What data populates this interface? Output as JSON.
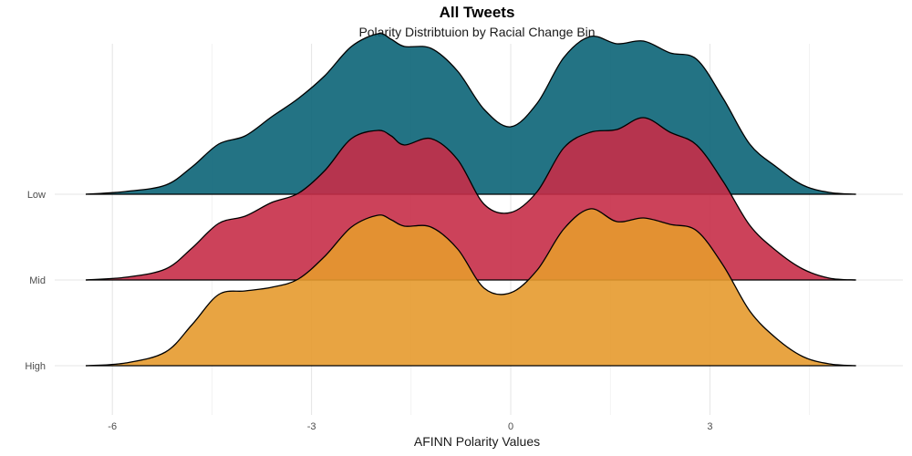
{
  "chart_data": {
    "type": "area",
    "subtype": "ridgeline-density",
    "title": "All Tweets",
    "subtitle": "Polarity Distribtuion by Racial Change Bin",
    "xlabel": "AFINN Polarity Values",
    "ylabel": "",
    "xlim": [
      -7,
      5.5
    ],
    "x_ticks": [
      -6,
      -3,
      0,
      3
    ],
    "y_categories": [
      "Low",
      "Mid",
      "High"
    ],
    "grid": true,
    "legend": "none",
    "x": [
      -6.4,
      -5.8,
      -5.2,
      -4.8,
      -4.4,
      -4.0,
      -3.6,
      -3.2,
      -2.8,
      -2.4,
      -2.0,
      -1.8,
      -1.6,
      -1.2,
      -0.8,
      -0.4,
      0.0,
      0.4,
      0.8,
      1.2,
      1.6,
      2.0,
      2.4,
      2.8,
      3.2,
      3.6,
      4.0,
      4.4,
      4.8,
      5.2
    ],
    "series": [
      {
        "name": "Low",
        "color": "#0B6477",
        "values": [
          0.0,
          0.03,
          0.1,
          0.3,
          0.55,
          0.64,
          0.85,
          1.05,
          1.3,
          1.62,
          1.76,
          1.7,
          1.62,
          1.6,
          1.35,
          0.93,
          0.74,
          1.0,
          1.5,
          1.73,
          1.65,
          1.68,
          1.55,
          1.48,
          1.05,
          0.55,
          0.3,
          0.1,
          0.02,
          0.0
        ]
      },
      {
        "name": "Mid",
        "color": "#C62E48",
        "values": [
          0.0,
          0.03,
          0.12,
          0.35,
          0.62,
          0.7,
          0.85,
          0.95,
          1.2,
          1.55,
          1.64,
          1.58,
          1.48,
          1.55,
          1.32,
          0.83,
          0.74,
          0.97,
          1.45,
          1.62,
          1.65,
          1.78,
          1.62,
          1.48,
          1.08,
          0.6,
          0.32,
          0.12,
          0.02,
          0.0
        ]
      },
      {
        "name": "High",
        "color": "#E69A2E",
        "values": [
          0.0,
          0.03,
          0.15,
          0.45,
          0.78,
          0.82,
          0.86,
          0.95,
          1.2,
          1.52,
          1.65,
          1.6,
          1.53,
          1.52,
          1.28,
          0.85,
          0.8,
          1.05,
          1.5,
          1.72,
          1.58,
          1.62,
          1.55,
          1.48,
          1.1,
          0.6,
          0.3,
          0.1,
          0.02,
          0.0
        ]
      }
    ]
  }
}
